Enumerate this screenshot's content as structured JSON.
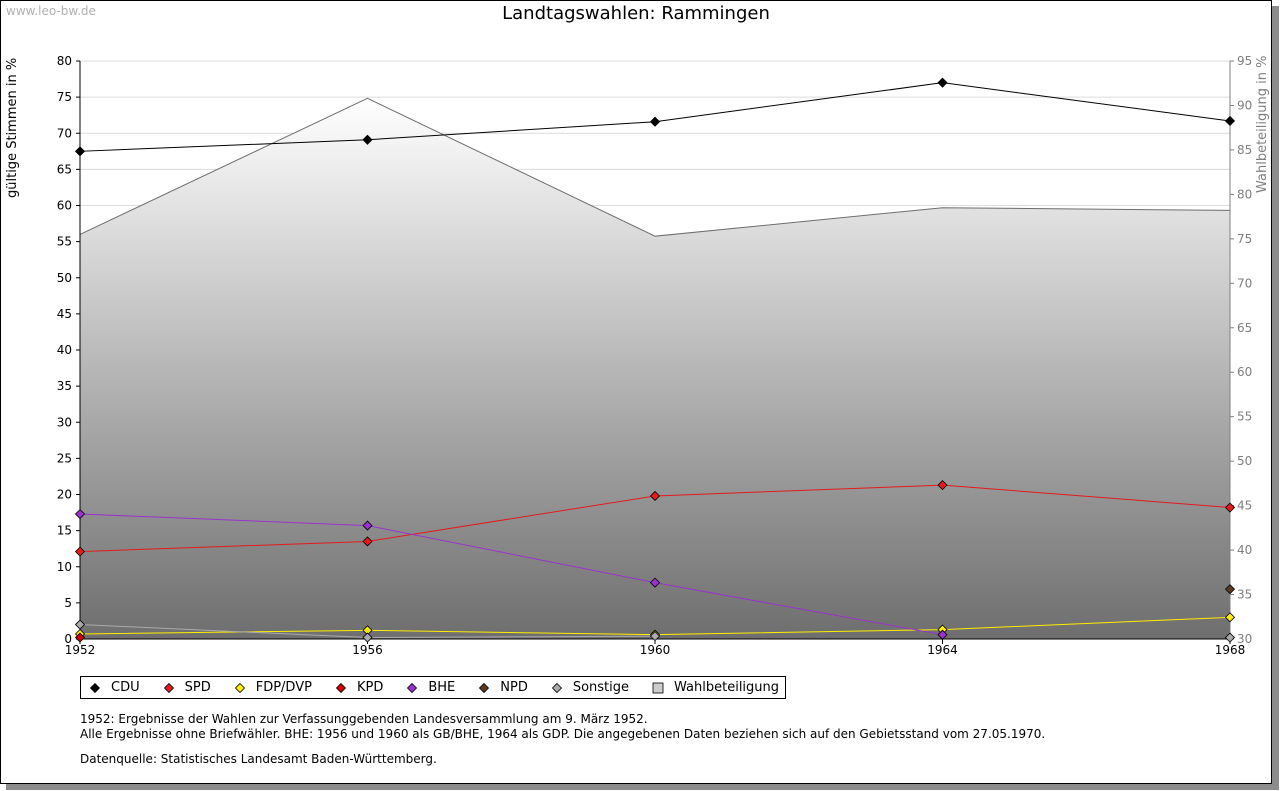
{
  "watermark": "www.leo-bw.de",
  "title": "Landtagswahlen: Rammingen",
  "ylabel": "gültige Stimmen in %",
  "y2label": "Wahlbeteiligung in %",
  "notes": [
    "1952: Ergebnisse der Wahlen zur Verfassunggebenden Landesversammlung am 9. März 1952.",
    "Alle Ergebnisse ohne Briefwähler. BHE: 1956 und 1960 als GB/BHE, 1964 als GDP. Die angegebenen Daten beziehen sich auf den Gebietsstand vom 27.05.1970."
  ],
  "source": "Datenquelle: Statistisches Landesamt Baden-Württemberg.",
  "chart_data": {
    "type": "line",
    "title": "Landtagswahlen: Rammingen",
    "x": [
      "1952",
      "1956",
      "1960",
      "1964",
      "1968"
    ],
    "ylabel": "gültige Stimmen in %",
    "y2label": "Wahlbeteiligung in %",
    "ylim": [
      0,
      80
    ],
    "y2lim": [
      30,
      95
    ],
    "yticks": [
      0,
      5,
      10,
      15,
      20,
      25,
      30,
      35,
      40,
      45,
      50,
      55,
      60,
      65,
      70,
      75,
      80
    ],
    "y2ticks": [
      30,
      35,
      40,
      45,
      50,
      55,
      60,
      65,
      70,
      75,
      80,
      85,
      90,
      95
    ],
    "grid": true,
    "legend_position": "bottom",
    "series": [
      {
        "name": "CDU",
        "color": "#000000",
        "values": [
          67.5,
          69.1,
          71.6,
          77.0,
          71.7
        ]
      },
      {
        "name": "SPD",
        "color": "#e41a1c",
        "values": [
          12.1,
          13.5,
          19.8,
          21.3,
          18.2
        ]
      },
      {
        "name": "FDP/DVP",
        "color": "#ffee00",
        "values": [
          0.7,
          1.2,
          0.6,
          1.3,
          3.0
        ]
      },
      {
        "name": "KPD",
        "color": "#cc0000",
        "values": [
          0.2,
          null,
          null,
          null,
          null
        ]
      },
      {
        "name": "BHE",
        "color": "#9933cc",
        "values": [
          17.3,
          15.7,
          7.8,
          0.6,
          null
        ]
      },
      {
        "name": "NPD",
        "color": "#5a3a22",
        "values": [
          null,
          null,
          null,
          null,
          6.9
        ]
      },
      {
        "name": "Sonstige",
        "color": "#aaaaaa",
        "values": [
          2.0,
          0.2,
          0.4,
          null,
          0.2
        ]
      },
      {
        "name": "Wahlbeteiligung",
        "color": "#cccccc",
        "axis": "right",
        "values": [
          75.5,
          90.8,
          75.3,
          78.5,
          78.2
        ]
      }
    ]
  }
}
